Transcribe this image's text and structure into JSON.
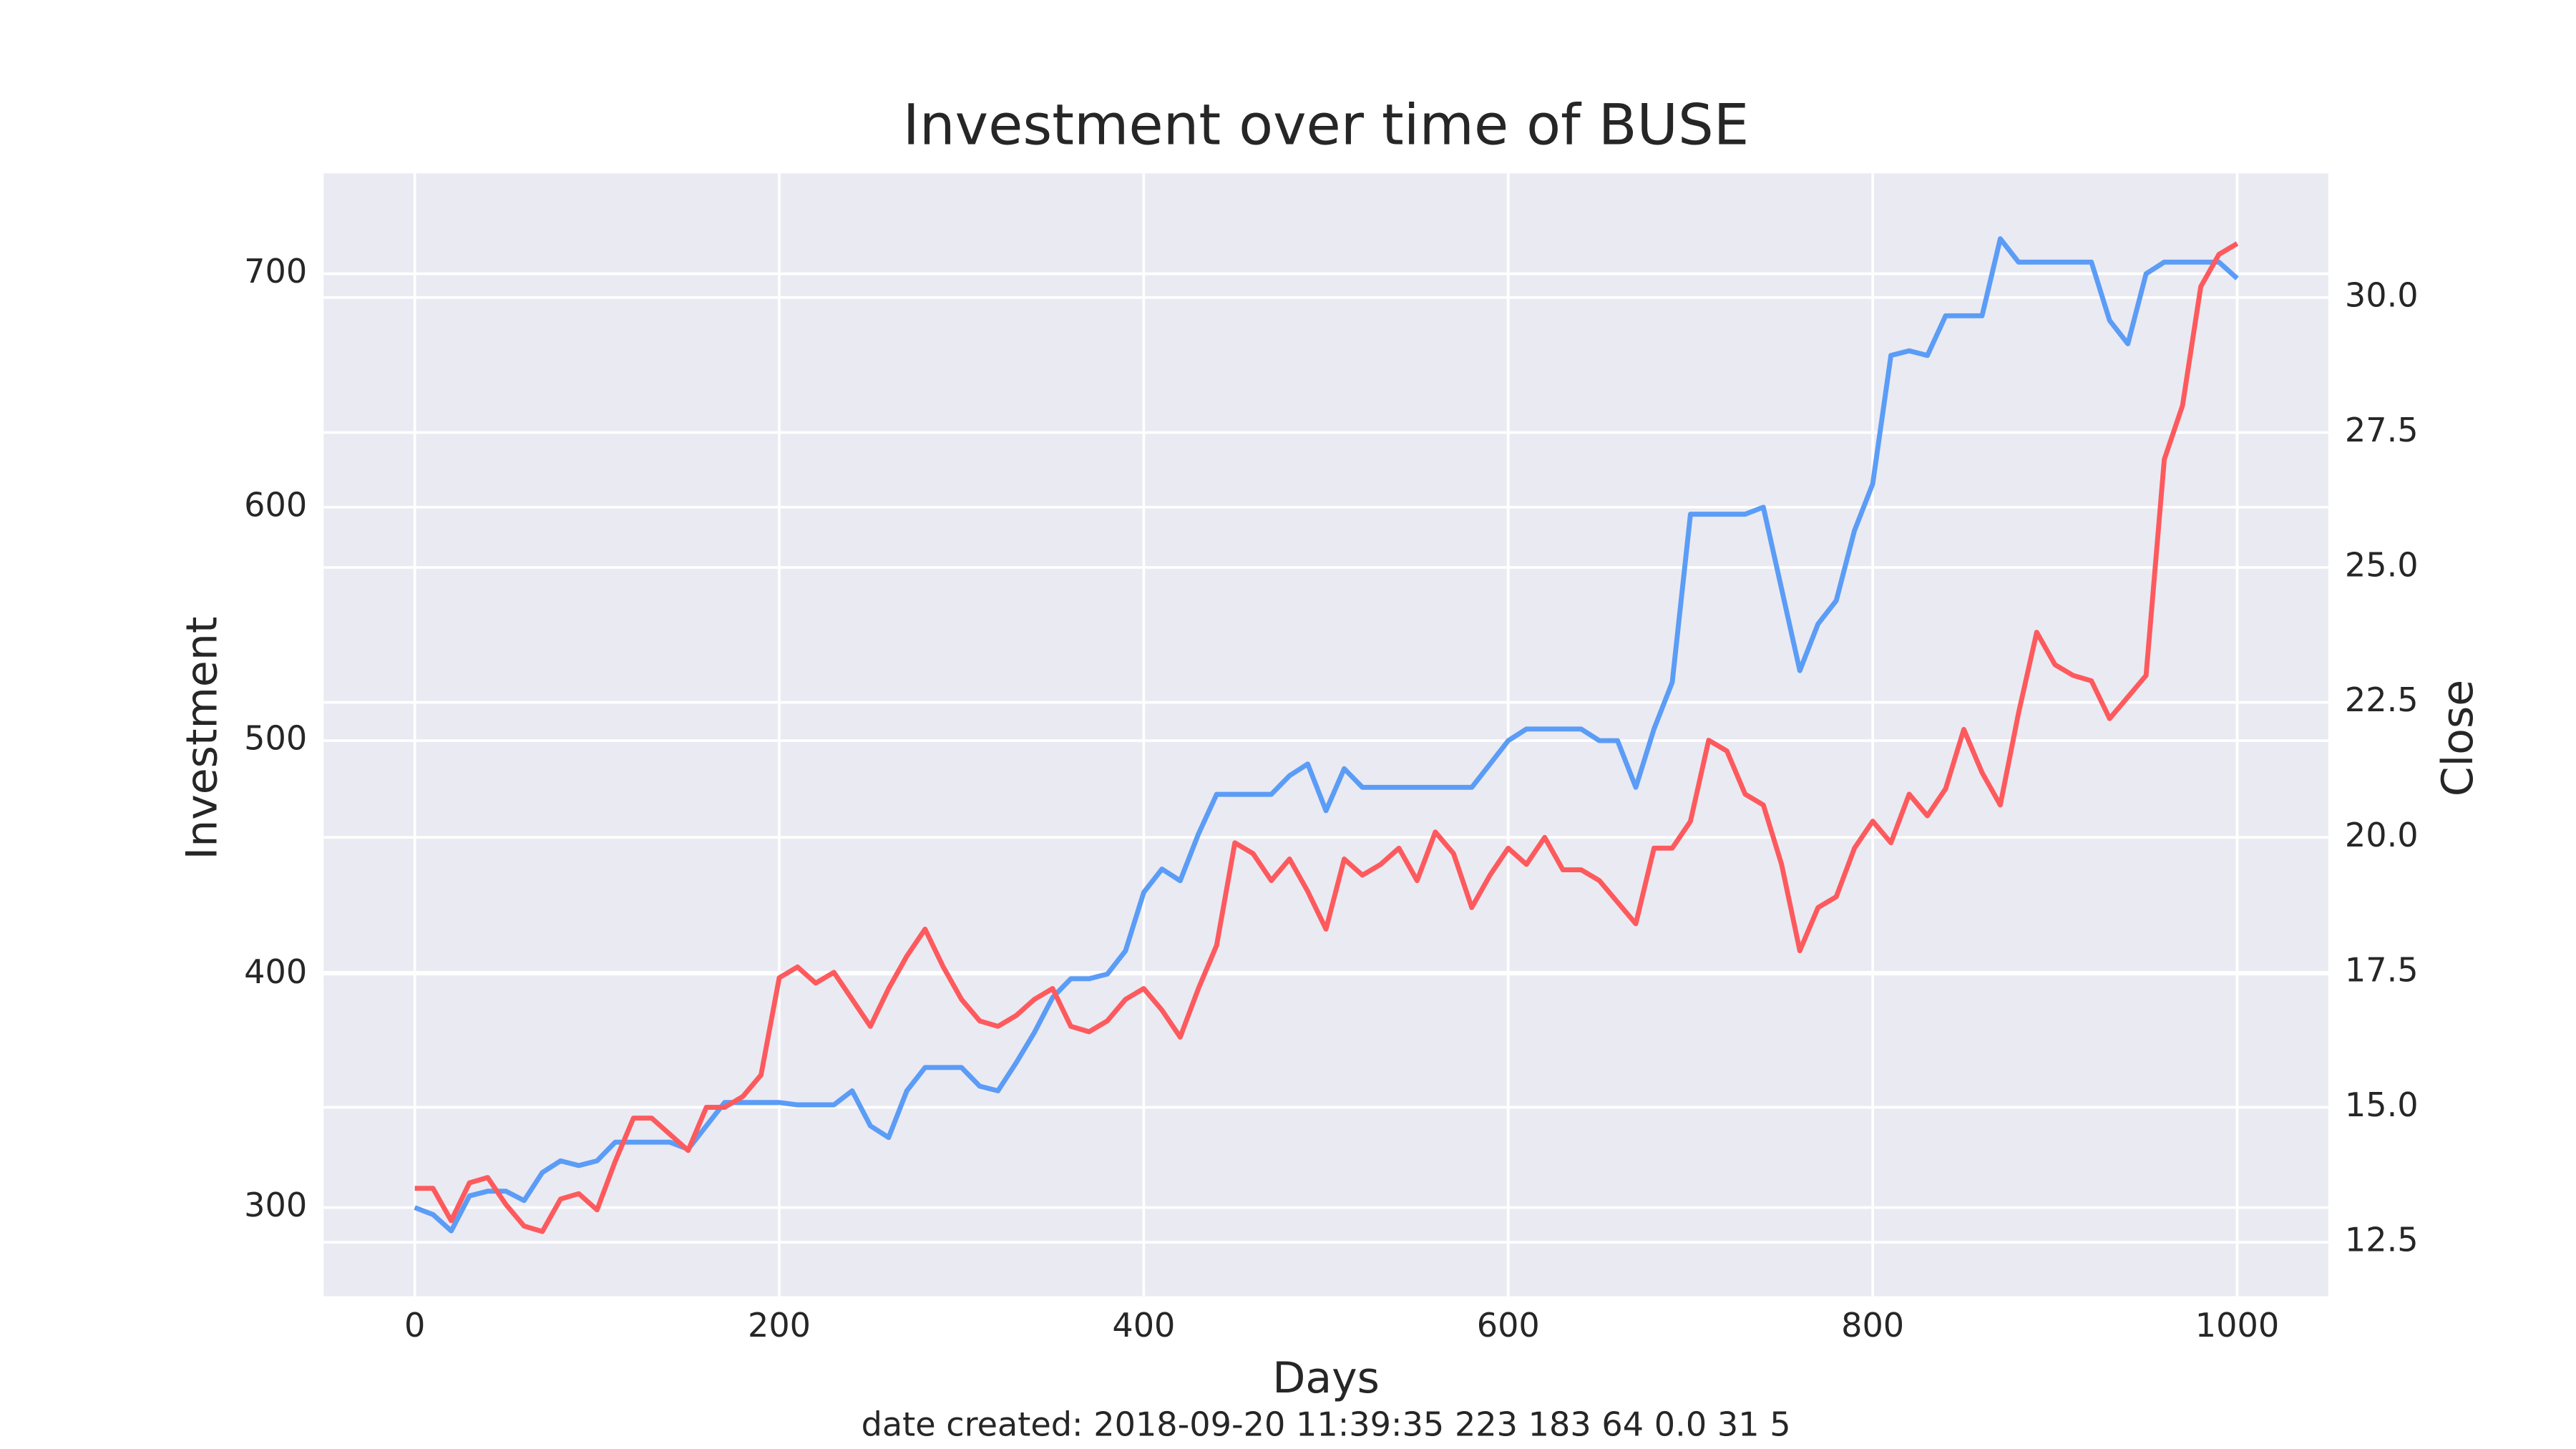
{
  "chart_data": {
    "type": "line",
    "title": "Investment over time of BUSE",
    "xlabel": "Days",
    "ylabel": "Investment",
    "y2label": "Close",
    "footer": "date created: 2018-09-20 11:39:35 223 183 64 0.0 31 5",
    "grid": true,
    "xlim": [
      -50,
      1050
    ],
    "xticks": [
      0,
      200,
      400,
      600,
      800,
      1000
    ],
    "ylim": [
      262,
      743
    ],
    "yticks": [
      300,
      400,
      500,
      600,
      700
    ],
    "y2lim": [
      11.5,
      32.3
    ],
    "y2ticks": [
      12.5,
      {
        "value": 15,
        "label": "15.0"
      },
      17.5,
      {
        "value": 20,
        "label": "20.0"
      },
      22.5,
      {
        "value": 25,
        "label": "25.0"
      },
      27.5,
      {
        "value": 30,
        "label": "30.0"
      }
    ],
    "x": [
      0,
      10,
      20,
      30,
      40,
      50,
      60,
      70,
      80,
      90,
      100,
      110,
      120,
      130,
      140,
      150,
      160,
      170,
      180,
      190,
      200,
      210,
      220,
      230,
      240,
      250,
      260,
      270,
      280,
      290,
      300,
      310,
      320,
      330,
      340,
      350,
      360,
      370,
      380,
      390,
      400,
      410,
      420,
      430,
      440,
      450,
      460,
      470,
      480,
      490,
      500,
      510,
      520,
      530,
      540,
      550,
      560,
      570,
      580,
      590,
      600,
      610,
      620,
      630,
      640,
      650,
      660,
      670,
      680,
      690,
      700,
      710,
      720,
      730,
      740,
      750,
      760,
      770,
      780,
      790,
      800,
      810,
      820,
      830,
      840,
      850,
      860,
      870,
      880,
      890,
      900,
      910,
      920,
      930,
      940,
      950,
      960,
      970,
      980,
      990,
      1000
    ],
    "series": [
      {
        "name": "Investment",
        "color": "#5b9cf6",
        "axis": "y",
        "values": [
          300,
          297,
          290,
          305,
          307,
          307,
          303,
          315,
          320,
          318,
          320,
          328,
          328,
          328,
          328,
          325,
          335,
          345,
          345,
          345,
          345,
          344,
          344,
          344,
          350,
          335,
          330,
          350,
          360,
          360,
          360,
          352,
          350,
          362,
          375,
          390,
          398,
          398,
          400,
          410,
          435,
          445,
          440,
          460,
          477,
          477,
          477,
          477,
          485,
          490,
          470,
          488,
          480,
          480,
          480,
          480,
          480,
          480,
          480,
          490,
          500,
          505,
          505,
          505,
          505,
          500,
          500,
          480,
          505,
          525,
          597,
          597,
          597,
          597,
          600,
          565,
          530,
          550,
          560,
          590,
          610,
          665,
          667,
          665,
          682,
          682,
          682,
          715,
          705,
          705,
          705,
          705,
          705,
          680,
          670,
          700,
          705,
          705,
          705,
          705,
          698
        ]
      },
      {
        "name": "Close",
        "color": "#fd5a5e",
        "axis": "y2",
        "values": [
          13.5,
          13.5,
          12.9,
          13.6,
          13.7,
          13.2,
          12.8,
          12.7,
          13.3,
          13.4,
          13.1,
          14.0,
          14.8,
          14.8,
          14.5,
          14.2,
          15.0,
          15.0,
          15.2,
          15.6,
          17.4,
          17.6,
          17.3,
          17.5,
          17.0,
          16.5,
          17.2,
          17.8,
          18.3,
          17.6,
          17.0,
          16.6,
          16.5,
          16.7,
          17.0,
          17.2,
          16.5,
          16.4,
          16.6,
          17.0,
          17.2,
          16.8,
          16.3,
          17.2,
          18.0,
          19.9,
          19.7,
          19.2,
          19.6,
          19.0,
          18.3,
          19.6,
          19.3,
          19.5,
          19.8,
          19.2,
          20.1,
          19.7,
          18.7,
          19.3,
          19.8,
          19.5,
          20.0,
          19.4,
          19.4,
          19.2,
          18.8,
          18.4,
          19.8,
          19.8,
          20.3,
          21.8,
          21.6,
          20.8,
          20.6,
          19.5,
          17.9,
          18.7,
          18.9,
          19.8,
          20.3,
          19.9,
          20.8,
          20.4,
          20.9,
          22.0,
          21.2,
          20.6,
          22.3,
          23.8,
          23.2,
          23.0,
          22.9,
          22.2,
          22.6,
          23.0,
          27.0,
          28.0,
          30.2,
          30.8,
          31.0
        ]
      }
    ]
  }
}
